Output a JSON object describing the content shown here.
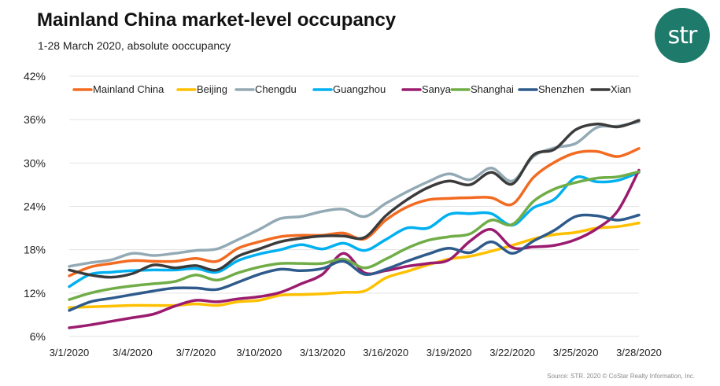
{
  "title": "Mainland China market-level occupancy",
  "subtitle": "1-28 March 2020, absolute ooccupancy",
  "logo_text": "str",
  "source": "Source: STR. 2020 © CoStar Realty Information, Inc.",
  "chart_data": {
    "type": "line",
    "x": [
      "3/1/2020",
      "3/2/2020",
      "3/3/2020",
      "3/4/2020",
      "3/5/2020",
      "3/6/2020",
      "3/7/2020",
      "3/8/2020",
      "3/9/2020",
      "3/10/2020",
      "3/11/2020",
      "3/12/2020",
      "3/13/2020",
      "3/14/2020",
      "3/15/2020",
      "3/16/2020",
      "3/17/2020",
      "3/18/2020",
      "3/19/2020",
      "3/20/2020",
      "3/21/2020",
      "3/22/2020",
      "3/23/2020",
      "3/24/2020",
      "3/25/2020",
      "3/26/2020",
      "3/27/2020",
      "3/28/2020"
    ],
    "x_tick_labels": [
      "3/1/2020",
      "3/4/2020",
      "3/7/2020",
      "3/10/2020",
      "3/13/2020",
      "3/16/2020",
      "3/19/2020",
      "3/22/2020",
      "3/25/2020",
      "3/28/2020"
    ],
    "y_tick_labels": [
      "6%",
      "12%",
      "18%",
      "24%",
      "30%",
      "36%",
      "42%"
    ],
    "ylim": [
      6,
      42
    ],
    "y_unit": "%",
    "grid": "horizontal",
    "legend": "top",
    "series": [
      {
        "name": "Mainland China",
        "color": "#f26b21",
        "values": [
          14.4,
          15.6,
          16.1,
          16.5,
          16.4,
          16.4,
          16.8,
          16.4,
          18.2,
          19.1,
          19.8,
          20.0,
          20.0,
          20.3,
          19.5,
          22.1,
          23.9,
          24.9,
          25.1,
          25.2,
          25.2,
          24.3,
          28.0,
          30.1,
          31.4,
          31.6,
          30.9,
          32.0
        ]
      },
      {
        "name": "Beijing",
        "color": "#ffc000",
        "values": [
          10.0,
          10.1,
          10.2,
          10.3,
          10.3,
          10.3,
          10.5,
          10.3,
          10.8,
          11.0,
          11.7,
          11.8,
          11.9,
          12.1,
          12.3,
          14.1,
          15.0,
          15.9,
          16.7,
          17.1,
          17.8,
          18.6,
          19.5,
          20.1,
          20.4,
          21.0,
          21.2,
          21.7
        ]
      },
      {
        "name": "Chengdu",
        "color": "#93aab5",
        "values": [
          15.7,
          16.2,
          16.6,
          17.5,
          17.2,
          17.5,
          17.9,
          18.1,
          19.4,
          20.8,
          22.3,
          22.6,
          23.3,
          23.6,
          22.6,
          24.4,
          26.0,
          27.4,
          28.5,
          27.7,
          29.3,
          27.5,
          30.9,
          32.1,
          32.7,
          34.9,
          35.1,
          35.7
        ]
      },
      {
        "name": "Guangzhou",
        "color": "#00b0f0",
        "values": [
          12.9,
          14.6,
          14.9,
          15.1,
          15.2,
          15.2,
          15.4,
          14.9,
          16.5,
          17.4,
          18.0,
          18.7,
          18.1,
          18.9,
          17.9,
          19.4,
          21.0,
          21.0,
          22.9,
          23.0,
          23.0,
          21.4,
          23.8,
          25.0,
          28.0,
          27.4,
          27.6,
          28.7
        ]
      },
      {
        "name": "Sanya",
        "color": "#9b1b6f",
        "values": [
          7.2,
          7.6,
          8.1,
          8.6,
          9.1,
          10.2,
          11.0,
          10.8,
          11.2,
          11.5,
          12.1,
          13.3,
          14.6,
          17.5,
          14.8,
          15.1,
          15.7,
          16.1,
          16.6,
          19.2,
          20.8,
          18.3,
          18.4,
          18.6,
          19.4,
          20.9,
          23.4,
          29.0
        ]
      },
      {
        "name": "Shanghai",
        "color": "#70ad47",
        "values": [
          11.1,
          12.0,
          12.6,
          13.0,
          13.3,
          13.6,
          14.5,
          13.8,
          14.8,
          15.6,
          16.1,
          16.1,
          16.1,
          16.7,
          15.5,
          16.7,
          18.2,
          19.3,
          19.8,
          20.2,
          22.1,
          21.5,
          24.7,
          26.4,
          27.3,
          27.9,
          28.1,
          28.8
        ]
      },
      {
        "name": "Shenzhen",
        "color": "#2e5b8c",
        "values": [
          9.6,
          10.8,
          11.3,
          11.8,
          12.3,
          12.7,
          12.7,
          12.5,
          13.5,
          14.6,
          15.3,
          15.1,
          15.4,
          16.4,
          14.6,
          15.3,
          16.4,
          17.4,
          18.2,
          17.6,
          19.1,
          17.5,
          19.2,
          20.7,
          22.6,
          22.7,
          22.1,
          22.8
        ]
      },
      {
        "name": "Xian",
        "color": "#3b3b3b",
        "values": [
          15.2,
          14.5,
          14.2,
          14.7,
          15.9,
          15.5,
          15.8,
          15.2,
          17.1,
          18.1,
          19.1,
          19.6,
          19.9,
          19.9,
          19.7,
          22.7,
          24.9,
          26.6,
          27.5,
          27.0,
          28.7,
          27.1,
          31.1,
          31.9,
          34.6,
          35.4,
          35.0,
          35.9
        ]
      }
    ]
  }
}
